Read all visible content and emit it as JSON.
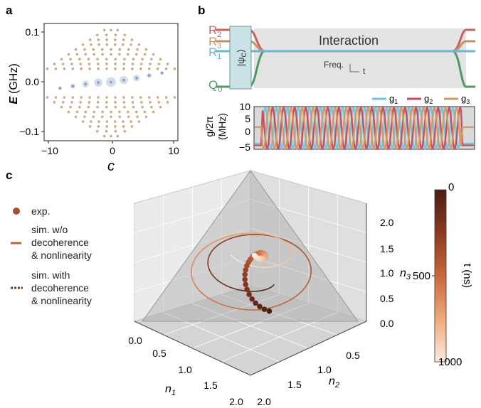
{
  "panel_a": {
    "label": "a",
    "ylabel_E": "E",
    "ylabel_unit": "(GHz)",
    "xlabel": "c",
    "x_ticks": [
      "−10",
      "0",
      "10"
    ],
    "y_ticks": [
      "0.1",
      "0.0",
      "−0.1"
    ]
  },
  "panel_b": {
    "label": "b",
    "levels": {
      "R2": "R",
      "R2_sub": "2",
      "R3": "R",
      "R3_sub": "3",
      "R1": "R",
      "R1_sub": "1",
      "Q0": "Q",
      "Q0_sub": "0"
    },
    "state_box": "|ψ",
    "state_box_sub": "C",
    "state_box_close": "⟩",
    "interaction_label": "Interaction",
    "freq_label": "Freq.",
    "t_label": "t",
    "legend": [
      {
        "name": "g",
        "sub": "1",
        "color": "#6fc3e6"
      },
      {
        "name": "g",
        "sub": "2",
        "color": "#c84a56"
      },
      {
        "name": "g",
        "sub": "3",
        "color": "#d09a62"
      }
    ],
    "ylabel": "g/2π",
    "ylabel_unit": "(MHz)",
    "y_ticks": [
      "10",
      "5",
      "0",
      "−5"
    ]
  },
  "panel_c": {
    "label": "c",
    "legend": [
      {
        "marker": "dot",
        "text": [
          "exp."
        ]
      },
      {
        "marker": "solid",
        "text": [
          "sim. w/o",
          "decoherence",
          "& nonlinearity"
        ]
      },
      {
        "marker": "dotted",
        "text": [
          "sim. with",
          "decoherence",
          "& nonlinearity"
        ]
      }
    ],
    "n1_label": "n",
    "n1_sub": "1",
    "n2_label": "n",
    "n2_sub": "2",
    "n3_label": "n",
    "n3_sub": "3",
    "n1_ticks": [
      "0.0",
      "0.5",
      "1.0",
      "1.5",
      "2.0"
    ],
    "n2_ticks": [
      "0.5",
      "1.0",
      "1.5",
      "2.0"
    ],
    "n3_ticks": [
      "2.0",
      "1.5",
      "1.0",
      "0.5",
      "0.0"
    ],
    "colorbar": {
      "label": "t (ns)",
      "ticks": [
        "0",
        "500",
        "1000"
      ],
      "min": 0,
      "max": 1000
    }
  },
  "chart_data": [
    {
      "type": "scatter",
      "panel": "a",
      "xlabel": "c",
      "ylabel": "E (GHz)",
      "xlim": [
        -10.5,
        10.5
      ],
      "ylim": [
        -0.115,
        0.115
      ],
      "series": [
        {
          "name": "",
          "note_color": "#cfa982",
          "kind": "band_points"
        },
        {
          "name": "",
          "note_color": "#a9b6d4",
          "x": [
            -8,
            -6,
            -4,
            -2,
            0,
            2,
            4,
            6,
            8
          ],
          "y": [
            -0.012,
            -0.008,
            -0.004,
            -0.001,
            0.0,
            0.004,
            0.008,
            0.013,
            0.018
          ]
        }
      ]
    },
    {
      "type": "line",
      "panel": "b",
      "ylabel": "g/2π (MHz)",
      "ylim": [
        -5,
        10
      ],
      "series": [
        {
          "name": "g1",
          "color": "#6fc3e6"
        },
        {
          "name": "g2",
          "color": "#c84a56"
        },
        {
          "name": "g3",
          "color": "#d09a62"
        }
      ]
    },
    {
      "type": "scatter",
      "panel": "c",
      "xlabel": "n1",
      "ylabel": "n2",
      "zlabel": "n3",
      "xlim": [
        0,
        2
      ],
      "ylim": [
        0,
        2
      ],
      "zlim": [
        0,
        2
      ],
      "colorbar": {
        "label": "t (ns)",
        "range": [
          0,
          1000
        ]
      }
    }
  ]
}
